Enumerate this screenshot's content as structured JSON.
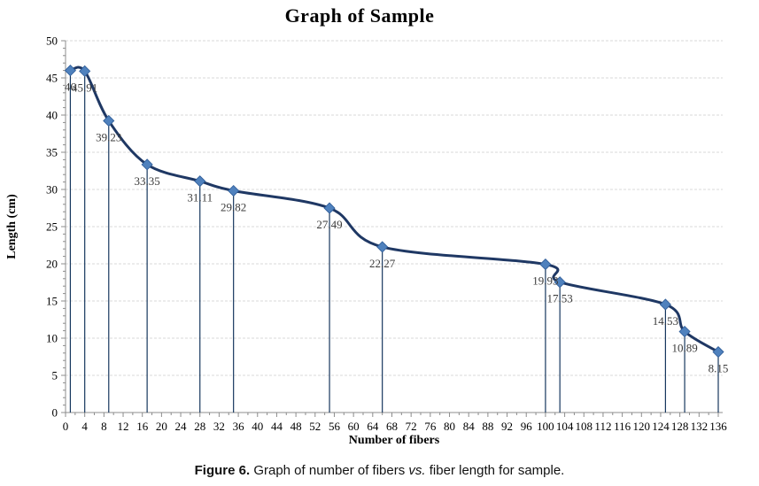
{
  "caption": {
    "label": "Figure 6.",
    "text1": " Graph of number of fibers ",
    "italic": "vs.",
    "text2": " fiber length for sample."
  },
  "colors": {
    "line": "#1F3864",
    "marker_fill": "#4F81BD",
    "marker_edge": "#2C5A96",
    "drop_line": "#17375E",
    "gridline": "#DADADA",
    "axis": "#8C8C8C",
    "tick": "#8C8C8C",
    "data_label": "#3B3B3B",
    "tick_label": "#000000"
  },
  "chart_data": {
    "type": "line",
    "title": "Graph of Sample",
    "xlabel": "Number of fibers",
    "ylabel": "Length (cm)",
    "xlim": [
      0,
      136
    ],
    "ylim": [
      0,
      50
    ],
    "x_ticks": [
      0,
      4,
      8,
      12,
      16,
      20,
      24,
      28,
      32,
      36,
      40,
      44,
      48,
      52,
      56,
      60,
      64,
      68,
      72,
      76,
      80,
      84,
      88,
      92,
      96,
      100,
      104,
      108,
      112,
      116,
      120,
      124,
      128,
      132,
      136
    ],
    "y_ticks": [
      0,
      5,
      10,
      15,
      20,
      25,
      30,
      35,
      40,
      45,
      50
    ],
    "x_minor_step": 2,
    "y_minor_step": 1,
    "grid": "horizontal-dashed",
    "legend": "none",
    "smoothed": true,
    "drop_lines": true,
    "x": [
      1,
      4,
      9,
      17,
      28,
      35,
      55,
      66,
      100,
      103,
      125,
      129,
      136
    ],
    "y": [
      46,
      45.91,
      39.23,
      33.35,
      31.11,
      29.82,
      27.49,
      22.27,
      19.93,
      17.53,
      14.53,
      10.89,
      8.15
    ],
    "point_labels": [
      "46",
      "45.91",
      "39.23",
      "33.35",
      "31.11",
      "29.82",
      "27.49",
      "22.27",
      "19.93",
      "17.53",
      "14.53",
      "10.89",
      "8.15"
    ]
  }
}
